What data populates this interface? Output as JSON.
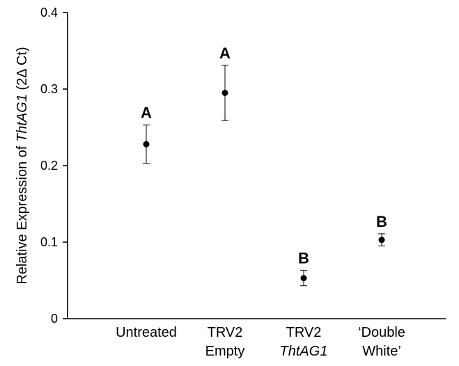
{
  "chart_data": {
    "type": "scatter",
    "categories": [
      {
        "lines": [
          {
            "parts": [
              {
                "text": "Untreated",
                "italic": false
              }
            ]
          }
        ]
      },
      {
        "lines": [
          {
            "parts": [
              {
                "text": "TRV2",
                "italic": false
              }
            ]
          },
          {
            "parts": [
              {
                "text": "Empty",
                "italic": false
              }
            ]
          }
        ]
      },
      {
        "lines": [
          {
            "parts": [
              {
                "text": "TRV2",
                "italic": false
              }
            ]
          },
          {
            "parts": [
              {
                "text": "ThtAG1",
                "italic": true
              }
            ]
          }
        ]
      },
      {
        "lines": [
          {
            "parts": [
              {
                "text": "‘Double",
                "italic": false
              }
            ]
          },
          {
            "parts": [
              {
                "text": "White’",
                "italic": false
              }
            ]
          }
        ]
      }
    ],
    "values": [
      0.228,
      0.295,
      0.053,
      0.103
    ],
    "error_upper": [
      0.253,
      0.331,
      0.063,
      0.111
    ],
    "error_lower": [
      0.203,
      0.259,
      0.043,
      0.095
    ],
    "significance_labels": [
      "A",
      "A",
      "B",
      "B"
    ],
    "ylabel_parts": [
      {
        "text": "Relative Expression of ",
        "italic": false
      },
      {
        "text": "ThtAG1",
        "italic": true
      },
      {
        "text": " (2Δ Ct)",
        "italic": false
      }
    ],
    "ylim": [
      0,
      0.4
    ],
    "yticks": [
      "0",
      "0.1",
      "0.2",
      "0.3",
      "0.4"
    ],
    "ytick_values": [
      0,
      0.1,
      0.2,
      0.3,
      0.4
    ],
    "grid": false,
    "legend": "none"
  }
}
